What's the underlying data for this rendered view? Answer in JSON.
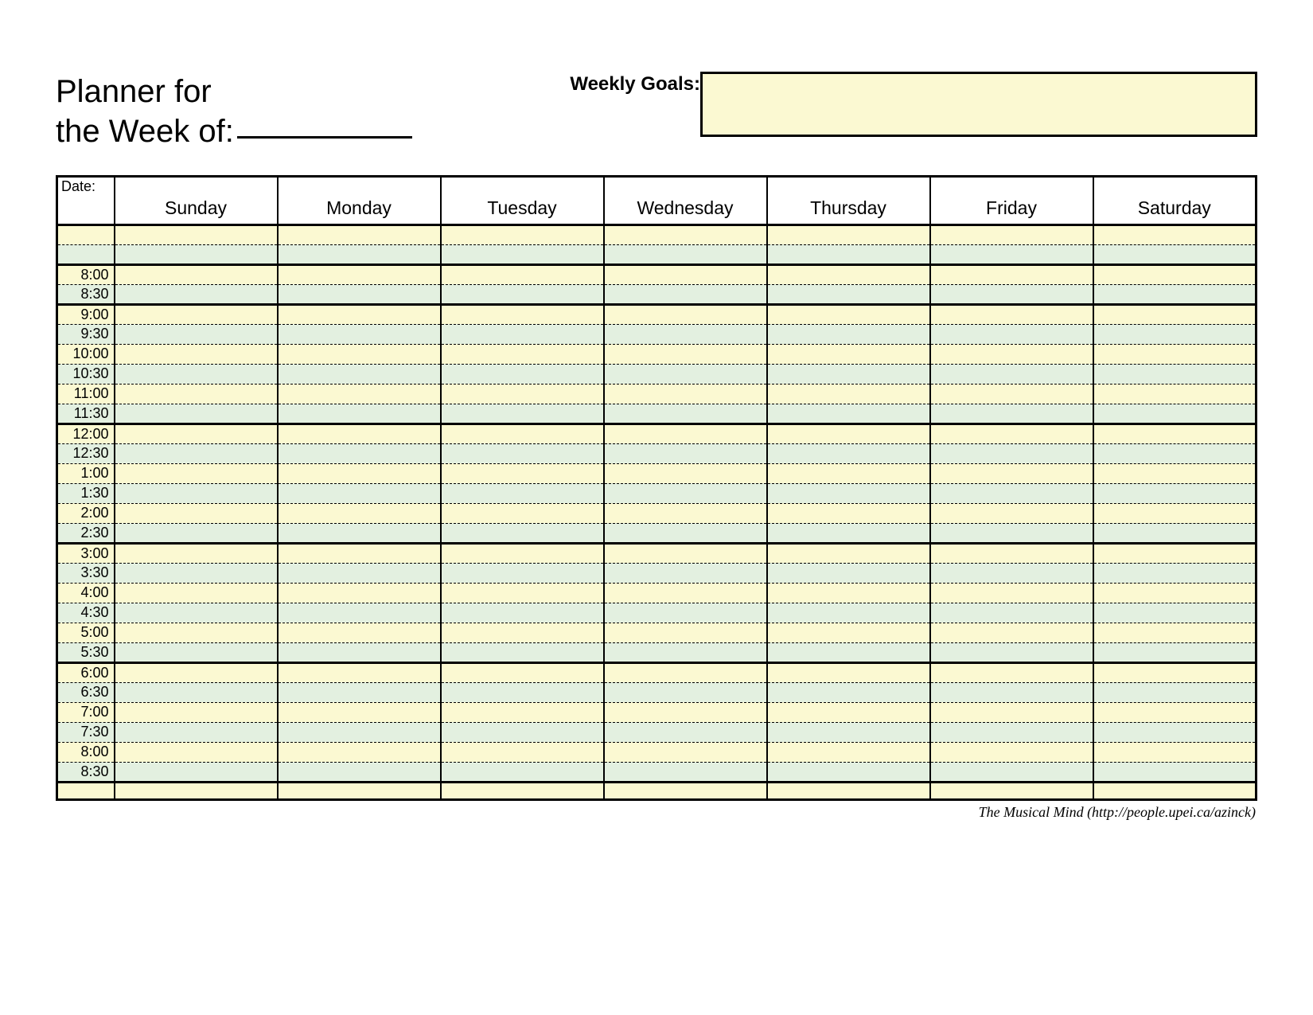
{
  "title_line1": "Planner for",
  "title_line2": "the Week of:",
  "goals_label": "Weekly Goals:",
  "date_label": "Date:",
  "days": [
    "Sunday",
    "Monday",
    "Tuesday",
    "Wednesday",
    "Thursday",
    "Friday",
    "Saturday"
  ],
  "times": [
    "",
    "",
    "8:00",
    "8:30",
    "9:00",
    "9:30",
    "10:00",
    "10:30",
    "11:00",
    "11:30",
    "12:00",
    "12:30",
    "1:00",
    "1:30",
    "2:00",
    "2:30",
    "3:00",
    "3:30",
    "4:00",
    "4:30",
    "5:00",
    "5:30",
    "6:00",
    "6:30",
    "7:00",
    "7:30",
    "8:00",
    "8:30"
  ],
  "thick_after": [
    1,
    3,
    9,
    15,
    21,
    27
  ],
  "colors": {
    "row_alt_a": "#fbf9d2",
    "row_alt_b": "#e3f0e0",
    "goals_bg": "#fbf9d2",
    "border": "#000000",
    "page_bg": "#ffffff"
  },
  "credit": "The Musical Mind   (http://people.upei.ca/azinck)"
}
